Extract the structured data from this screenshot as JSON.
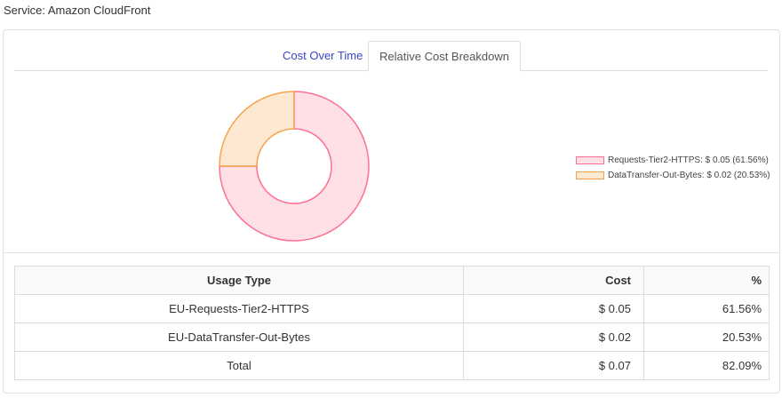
{
  "service": {
    "label": "Service: Amazon CloudFront"
  },
  "tabs": [
    {
      "label": "Cost Over Time",
      "active": false
    },
    {
      "label": "Relative Cost Breakdown",
      "active": true
    }
  ],
  "colors": {
    "link": "#3b45c6",
    "series1": "#ff6f91",
    "series1_fill": "#ffe0e7",
    "series2": "#f5a24b",
    "series2_fill": "#fde9d2"
  },
  "chart_data": {
    "type": "pie",
    "series": [
      {
        "name": "Requests-Tier2-HTTPS",
        "value": 0.05,
        "percent": 61.56
      },
      {
        "name": "DataTransfer-Out-Bytes",
        "value": 0.02,
        "percent": 20.53
      }
    ],
    "legend": [
      "Requests-Tier2-HTTPS: $ 0.05 (61.56%)",
      "DataTransfer-Out-Bytes: $ 0.02 (20.53%)"
    ],
    "legend_position": "right"
  },
  "table": {
    "headers": [
      "Usage Type",
      "Cost",
      "%"
    ],
    "rows": [
      {
        "type": "EU-Requests-Tier2-HTTPS",
        "cost": "$ 0.05",
        "pct": "61.56%"
      },
      {
        "type": "EU-DataTransfer-Out-Bytes",
        "cost": "$ 0.02",
        "pct": "20.53%"
      },
      {
        "type": "Total",
        "cost": "$ 0.07",
        "pct": "82.09%"
      }
    ]
  }
}
